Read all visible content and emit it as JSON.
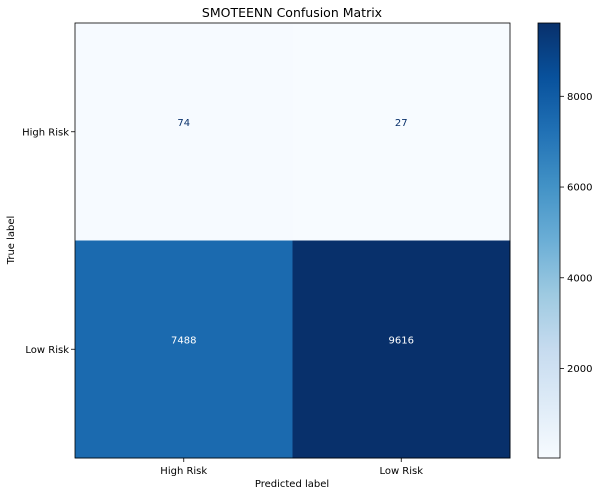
{
  "chart_data": {
    "type": "heatmap",
    "title": "SMOTEENN Confusion Matrix",
    "xlabel": "Predicted label",
    "ylabel": "True label",
    "x_categories": [
      "High Risk",
      "Low Risk"
    ],
    "y_categories": [
      "High Risk",
      "Low Risk"
    ],
    "values": [
      [
        74,
        27
      ],
      [
        7488,
        9616
      ]
    ],
    "colormap": "Blues",
    "color_range": [
      27,
      9616
    ],
    "colorbar_ticks": [
      2000,
      4000,
      6000,
      8000
    ],
    "colorbar_tick_labels": [
      "2000",
      "4000",
      "6000",
      "8000"
    ]
  }
}
